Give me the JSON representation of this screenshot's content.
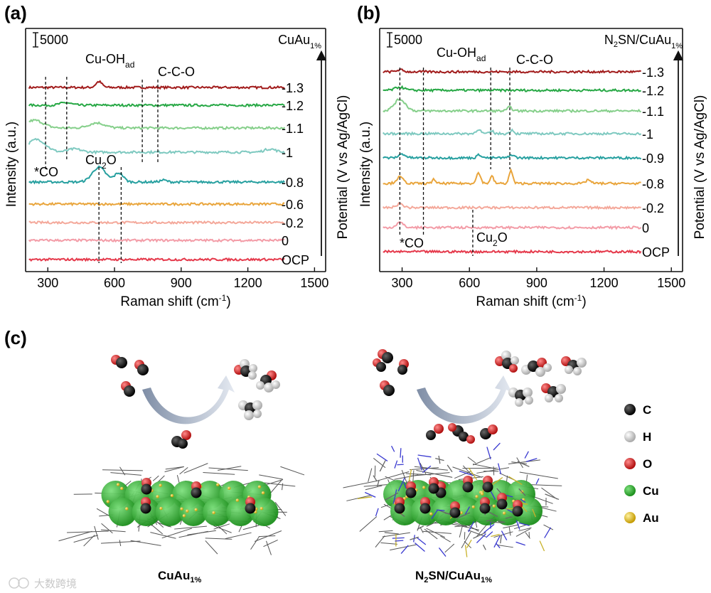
{
  "chart_data": [
    {
      "type": "line",
      "panel_label": "(a)",
      "sample_label": "CuAu",
      "sample_sub": "1%",
      "scale_bar": "5000",
      "xlabel": "Raman shift (cm",
      "xlabel_sup": "-1",
      "xlabel_end": ")",
      "ylabel_left": "Intensity (a.u.)",
      "ylabel_right": "Potential (V vs Ag/AgCl)",
      "xlim": [
        200,
        1550
      ],
      "xticks": [
        300,
        600,
        900,
        1200,
        1500
      ],
      "annotations": [
        {
          "text": "Cu-OH",
          "sub": "ad",
          "x": 540
        },
        {
          "text": "C-C-O",
          "x": 800
        },
        {
          "text": "*CO",
          "x": 290
        },
        {
          "text": "Cu",
          "sub": "2",
          "tail": "O",
          "x": 560
        }
      ],
      "dashed_lines_x": [
        290,
        385,
        725,
        795,
        530,
        630
      ],
      "series": [
        {
          "name": "-1.3",
          "color": "#a11b1b",
          "peaks": [
            [
              530,
              0.9,
              14
            ]
          ]
        },
        {
          "name": "-1.2",
          "color": "#27a845",
          "peaks": [
            [
              380,
              0.4,
              25
            ]
          ]
        },
        {
          "name": "-1.1",
          "color": "#85cf8a",
          "peaks": [
            [
              240,
              1.2,
              40
            ],
            [
              520,
              0.8,
              35
            ]
          ]
        },
        {
          "name": "-1",
          "color": "#7ec9c0",
          "peaks": [
            [
              250,
              2.0,
              40
            ],
            [
              420,
              0.5,
              30
            ],
            [
              1300,
              0.5,
              25
            ]
          ]
        },
        {
          "name": "-0.8",
          "color": "#27a0a0",
          "peaks": [
            [
              530,
              2.3,
              30
            ],
            [
              620,
              1.4,
              20
            ],
            [
              820,
              0.3,
              15
            ]
          ]
        },
        {
          "name": "-0.6",
          "color": "#e9a53c",
          "peaks": []
        },
        {
          "name": "-0.2",
          "color": "#f4a89a",
          "peaks": []
        },
        {
          "name": "0",
          "color": "#f39ca7",
          "peaks": []
        },
        {
          "name": "OCP",
          "color": "#e5394b",
          "peaks": []
        }
      ]
    },
    {
      "type": "line",
      "panel_label": "(b)",
      "sample_label": "N",
      "sample_label_sub": "2",
      "sample_label_rest": "SN/CuAu",
      "sample_sub": "1%",
      "scale_bar": "5000",
      "xlabel": "Raman shift (cm",
      "xlabel_sup": "-1",
      "xlabel_end": ")",
      "ylabel_left": "Intensity (a.u.)",
      "ylabel_right": "Potential (V vs Ag/AgCl)",
      "xlim": [
        200,
        1550
      ],
      "xticks": [
        300,
        600,
        900,
        1200,
        1500
      ],
      "annotations": [
        {
          "text": "Cu-OH",
          "sub": "ad",
          "x": 690
        },
        {
          "text": "C-C-O",
          "x": 800
        },
        {
          "text": "*CO",
          "x": 300
        },
        {
          "text": "Cu",
          "sub": "2",
          "tail": "O",
          "x": 680
        }
      ],
      "dashed_lines_x": [
        290,
        395,
        695,
        780,
        615
      ],
      "series": [
        {
          "name": "-1.3",
          "color": "#a11b1b",
          "peaks": [
            [
              290,
              0.3,
              15
            ]
          ]
        },
        {
          "name": "-1.2",
          "color": "#27a845",
          "peaks": [
            [
              290,
              0.5,
              20
            ]
          ]
        },
        {
          "name": "-1.1",
          "color": "#85cf8a",
          "peaks": [
            [
              290,
              1.8,
              25
            ],
            [
              780,
              0.6,
              10
            ]
          ]
        },
        {
          "name": "-1",
          "color": "#7ec9c0",
          "peaks": [
            [
              640,
              0.7,
              10
            ],
            [
              700,
              0.4,
              8
            ],
            [
              790,
              0.6,
              8
            ]
          ]
        },
        {
          "name": "-0.9",
          "color": "#27a0a0",
          "peaks": [
            [
              300,
              0.6,
              15
            ],
            [
              645,
              0.5,
              10
            ],
            [
              790,
              0.5,
              10
            ]
          ]
        },
        {
          "name": "-0.8",
          "color": "#e9a53c",
          "peaks": [
            [
              290,
              1.0,
              15
            ],
            [
              440,
              0.8,
              6
            ],
            [
              640,
              1.6,
              10
            ],
            [
              700,
              1.1,
              8
            ],
            [
              785,
              2.0,
              8
            ],
            [
              1130,
              0.6,
              10
            ]
          ]
        },
        {
          "name": "-0.2",
          "color": "#f4a89a",
          "peaks": [
            [
              290,
              0.6,
              15
            ]
          ]
        },
        {
          "name": "0",
          "color": "#f39ca7",
          "peaks": [
            [
              290,
              0.8,
              15
            ]
          ]
        },
        {
          "name": "OCP",
          "color": "#e5394b",
          "peaks": []
        }
      ]
    }
  ],
  "panel_c": {
    "label": "(c)",
    "left_caption": "CuAu",
    "left_caption_sub": "1%",
    "right_caption_pre": "N",
    "right_caption_sub1": "2",
    "right_caption_mid": "SN/CuAu",
    "right_caption_sub2": "1%",
    "legend": [
      {
        "symbol": "C",
        "color": "#111111"
      },
      {
        "symbol": "H",
        "color": "#e8e8e8"
      },
      {
        "symbol": "O",
        "color": "#d42020"
      },
      {
        "symbol": "Cu",
        "color": "#2bb52b"
      },
      {
        "symbol": "Au",
        "color": "#e6c21a"
      }
    ]
  },
  "watermark": "大数跨境",
  "colors": {
    "axis": "#111111",
    "cu": "#2bb52b",
    "oxygen": "#d42020",
    "carbon": "#111111",
    "hydrogen": "#e8e8e8",
    "gold": "#e6c21a",
    "arrow": "#a8b4c8"
  }
}
